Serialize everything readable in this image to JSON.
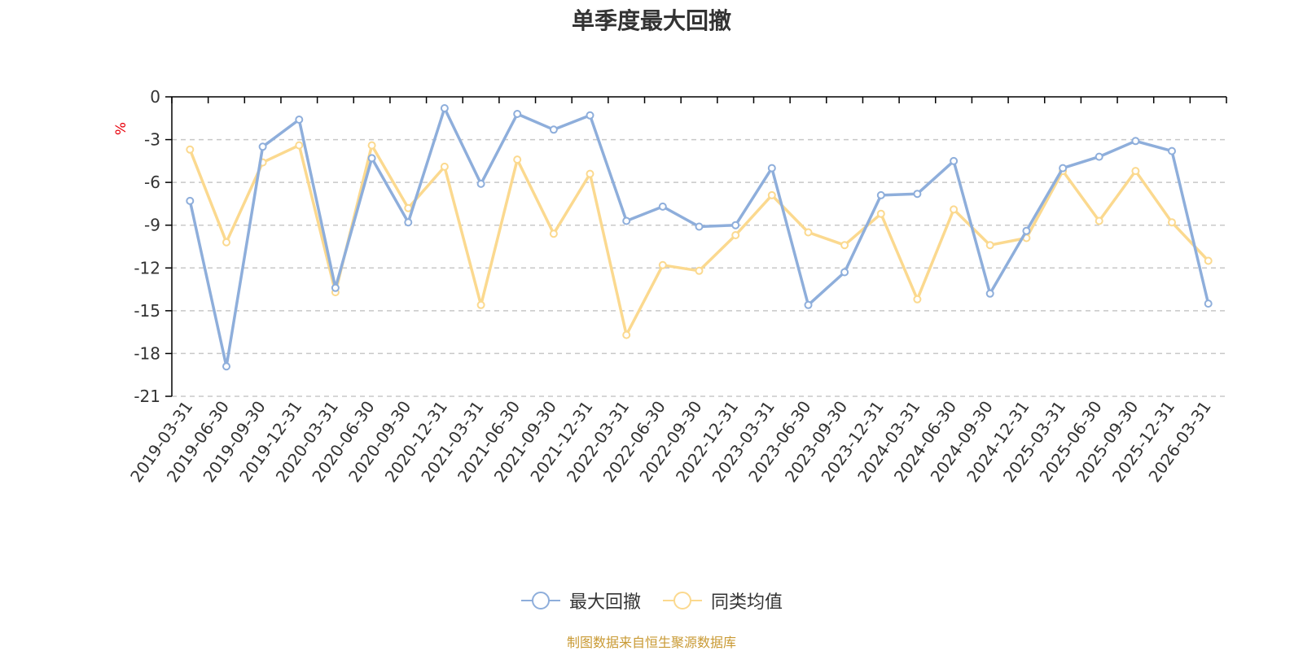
{
  "chart_data": {
    "type": "line",
    "title": "单季度最大回撤",
    "ylabel": "%",
    "xlabel": "",
    "ylim": [
      -21,
      0
    ],
    "yticks": [
      0,
      -3,
      -6,
      -9,
      -12,
      -15,
      -18,
      -21
    ],
    "grid": true,
    "legend_position": "bottom-center",
    "categories": [
      "2019-03-31",
      "2019-06-30",
      "2019-09-30",
      "2019-12-31",
      "2020-03-31",
      "2020-06-30",
      "2020-09-30",
      "2020-12-31",
      "2021-03-31",
      "2021-06-30",
      "2021-09-30",
      "2021-12-31",
      "2022-03-31",
      "2022-06-30",
      "2022-09-30",
      "2022-12-31",
      "2023-03-31",
      "2023-06-30",
      "2023-09-30",
      "2023-12-31",
      "2024-03-31",
      "2024-06-30",
      "2024-09-30",
      "2024-12-31",
      "2025-03-31",
      "2025-06-30",
      "2025-09-30",
      "2025-12-31",
      "2026-03-31"
    ],
    "series": [
      {
        "name": "最大回撤",
        "color": "#8eaedb",
        "values": [
          -7.3,
          -18.9,
          -3.5,
          -1.6,
          -13.4,
          -4.3,
          -8.8,
          -0.8,
          -6.1,
          -1.2,
          -2.3,
          -1.3,
          -8.7,
          -7.7,
          -9.1,
          -9.0,
          -5.0,
          -14.6,
          -12.3,
          -6.9,
          -6.8,
          -4.5,
          -13.8,
          -9.4,
          -5.0,
          -4.2,
          -3.1,
          -3.8,
          -14.5
        ]
      },
      {
        "name": "同类均值",
        "color": "#fbd98f",
        "values": [
          -3.7,
          -10.2,
          -4.6,
          -3.4,
          -13.7,
          -3.4,
          -7.8,
          -4.9,
          -14.6,
          -4.4,
          -9.6,
          -5.4,
          -16.7,
          -11.8,
          -12.2,
          -9.7,
          -6.9,
          -9.5,
          -10.4,
          -8.2,
          -14.2,
          -7.9,
          -10.4,
          -9.9,
          -5.2,
          -8.7,
          -5.2,
          -8.8,
          -11.5
        ]
      }
    ]
  },
  "source": "制图数据来自恒生聚源数据库",
  "colors": {
    "axis": "#000000",
    "grid": "#c8c8c8",
    "text": "#333333",
    "ylabel": "#e8000b",
    "source": "#c99a34"
  }
}
